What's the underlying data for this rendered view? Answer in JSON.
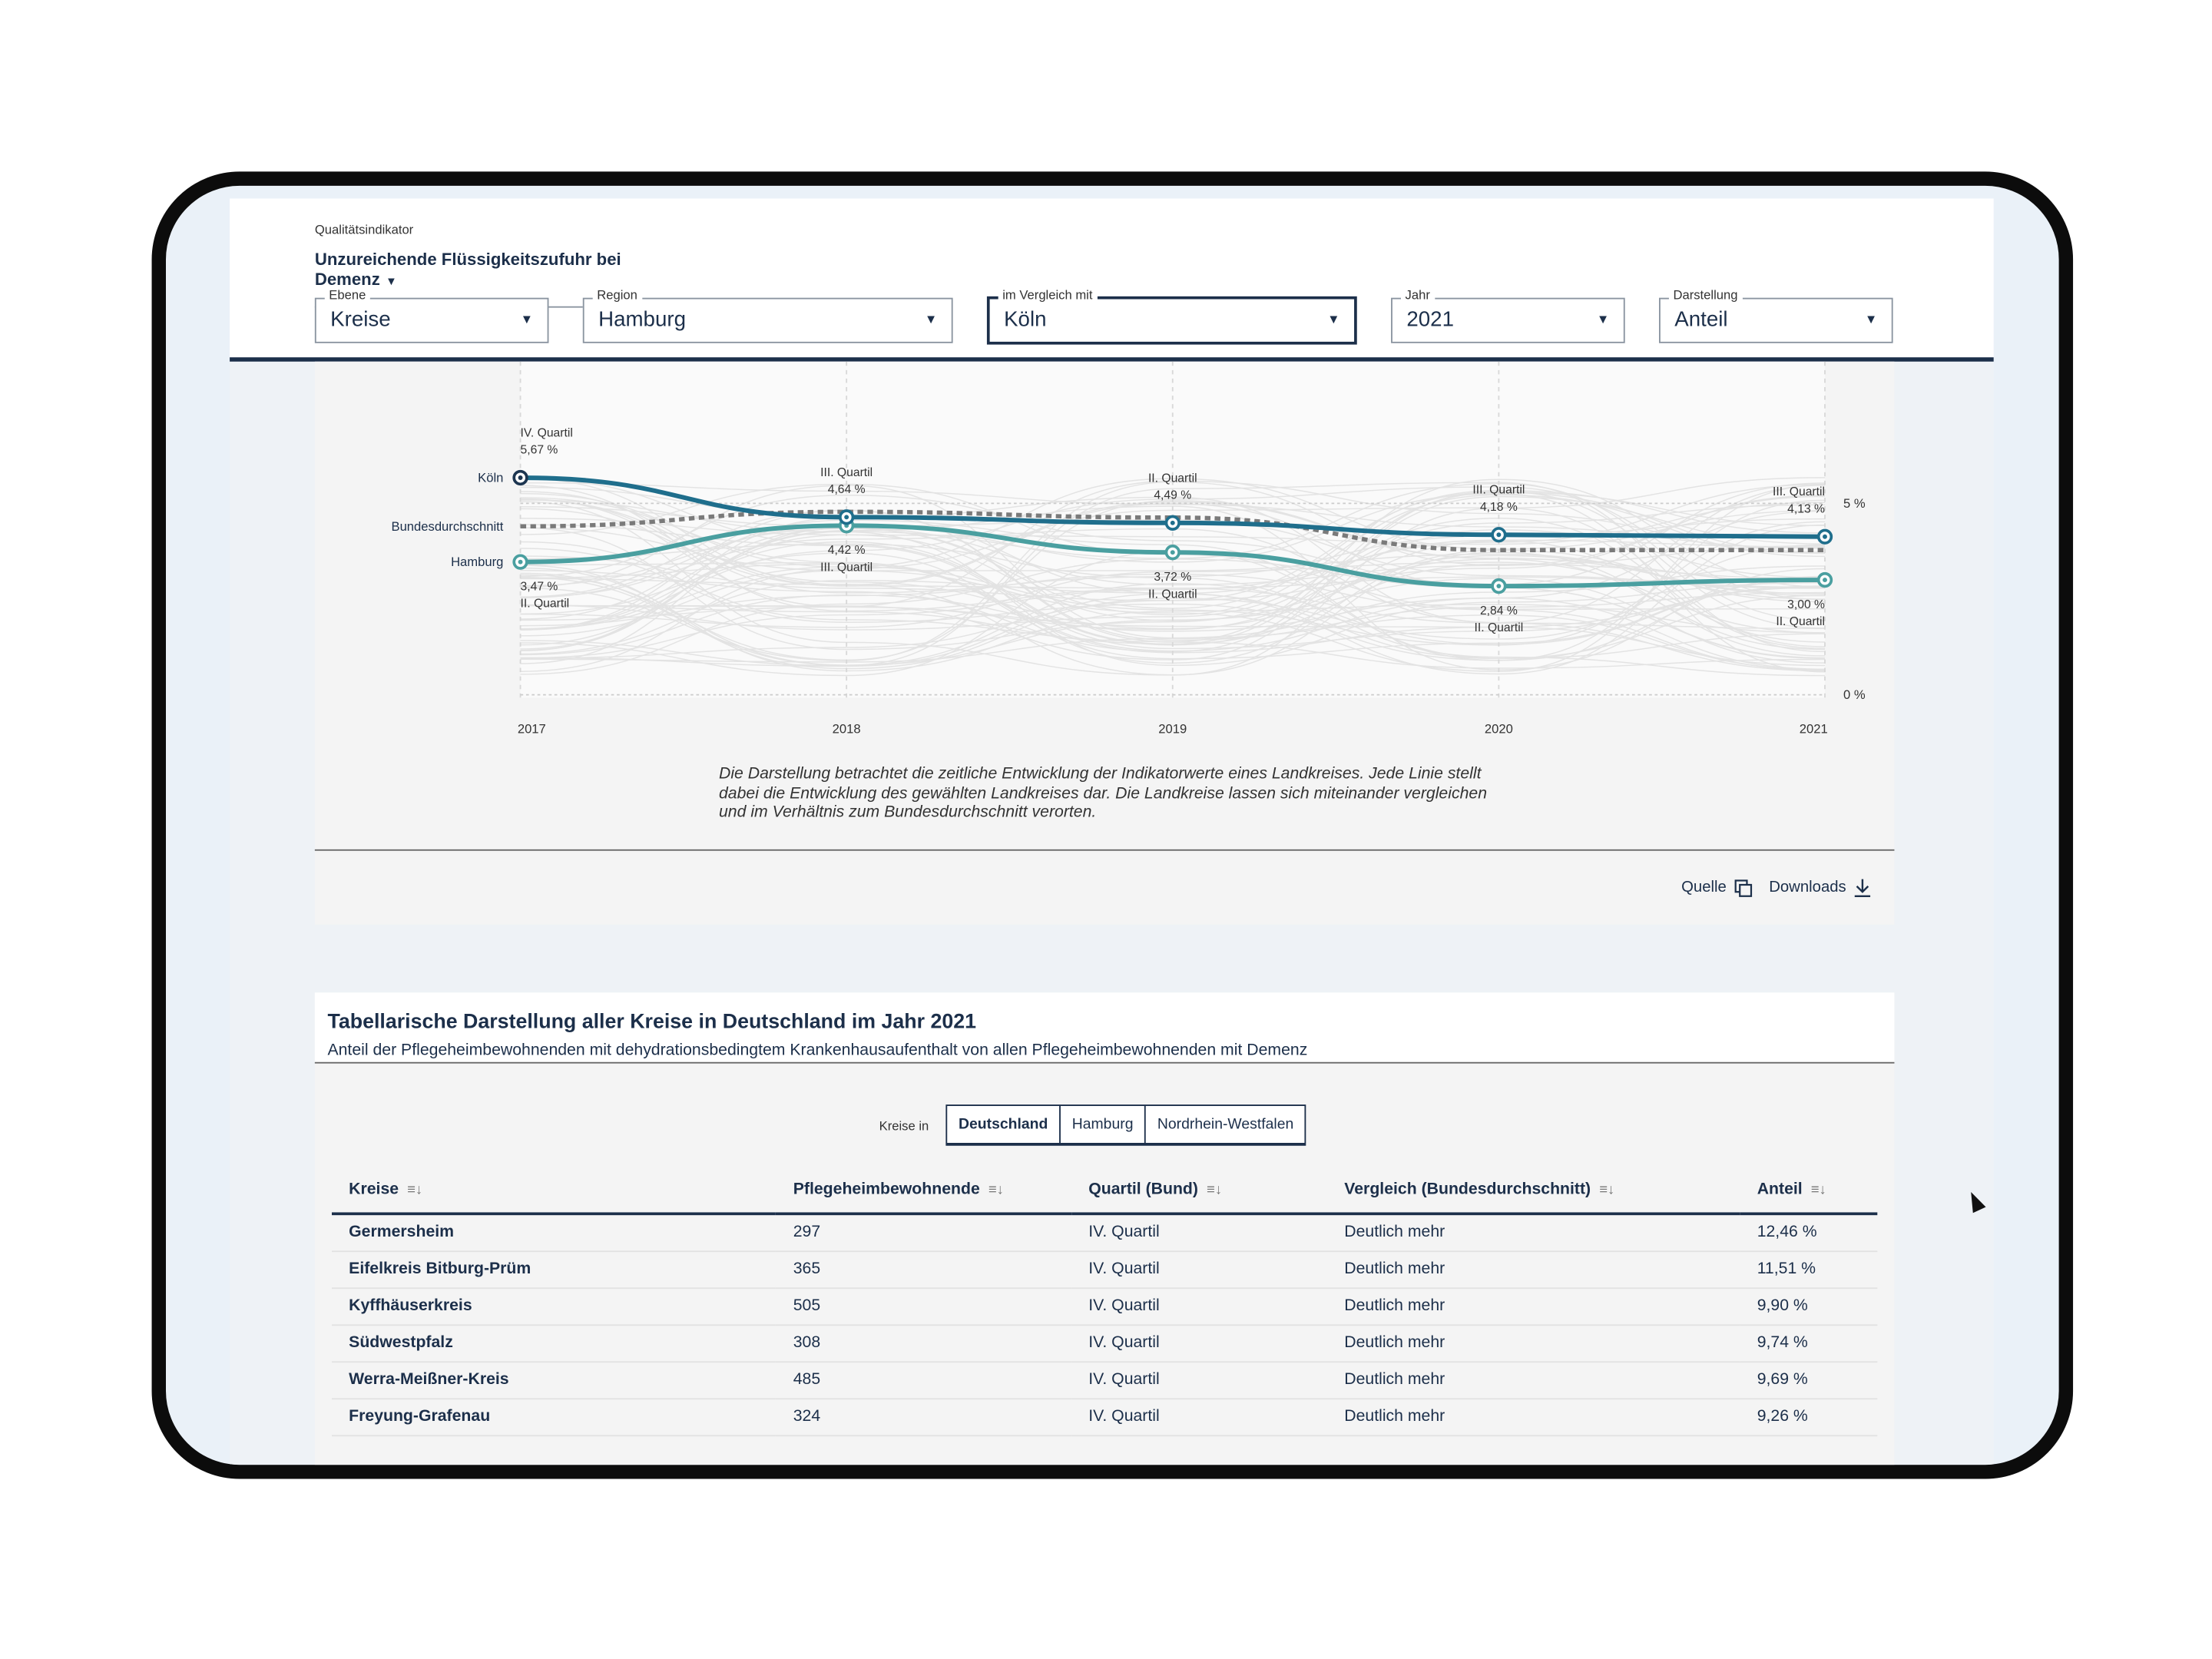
{
  "header": {
    "indicator_label": "Qualitätsindikator",
    "indicator_value": "Unzureichende Flüssigkeitszufuhr bei Demenz",
    "fields": [
      {
        "label": "Ebene",
        "value": "Kreise"
      },
      {
        "label": "Region",
        "value": "Hamburg"
      },
      {
        "label": "im Vergleich mit",
        "value": "Köln"
      },
      {
        "label": "Jahr",
        "value": "2021"
      },
      {
        "label": "Darstellung",
        "value": "Anteil"
      }
    ]
  },
  "chart_data": {
    "type": "line",
    "x": [
      "2017",
      "2018",
      "2019",
      "2020",
      "2021"
    ],
    "ylim": [
      0,
      5.9
    ],
    "yticks": [
      "0 %",
      "5 %"
    ],
    "ytick_values": [
      0,
      5
    ],
    "series": [
      {
        "name": "Köln",
        "color": "#1f6e8c",
        "values": [
          5.67,
          4.64,
          4.49,
          4.18,
          4.13
        ],
        "labels": [
          "5,67 %",
          "4,64 %",
          "4,49 %",
          "4,18 %",
          "4,13 %"
        ],
        "quartiles": [
          "IV. Quartil",
          "III. Quartil",
          "II. Quartil",
          "III. Quartil",
          "III. Quartil"
        ]
      },
      {
        "name": "Bundesdurchschnitt",
        "color": "#7a7a7a",
        "dashed": true,
        "values": [
          4.4,
          4.78,
          4.63,
          3.78,
          3.78
        ]
      },
      {
        "name": "Hamburg",
        "color": "#4a9fa0",
        "values": [
          3.47,
          4.42,
          3.72,
          2.84,
          3.0
        ],
        "labels": [
          "3,47 %",
          "4,42 %",
          "3,72 %",
          "2,84 %",
          "3,00 %"
        ],
        "quartiles": [
          "II. Quartil",
          "III. Quartil",
          "II. Quartil",
          "II. Quartil",
          "II. Quartil"
        ]
      }
    ]
  },
  "chart_caption": "Die Darstellung betrachtet die zeitliche Entwicklung der Indikatorwerte eines Landkreises. Jede Linie stellt dabei die Entwicklung des gewählten Landkreises dar. Die Landkreise lassen sich miteinander vergleichen und im Verhältnis zum Bundesdurchschnitt verorten.",
  "actions": {
    "source": "Quelle",
    "source_icon": "copy-icon",
    "downloads": "Downloads",
    "downloads_icon": "download-icon"
  },
  "table": {
    "title": "Tabellarische Darstellung aller Kreise in Deutschland im Jahr 2021",
    "subtitle": "Anteil der Pflegeheimbewohnenden mit dehydrationsbedingtem Krankenhausaufenthalt von allen Pflegeheimbewohnenden mit Demenz",
    "filter_label": "Kreise in",
    "filter_options": [
      "Deutschland",
      "Hamburg",
      "Nordrhein-Westfalen"
    ],
    "filter_selected": "Deutschland",
    "columns": [
      "Kreise",
      "Pflegeheimbewohnende",
      "Quartil (Bund)",
      "Vergleich (Bundesdurchschnitt)",
      "Anteil"
    ],
    "rows": [
      [
        "Germersheim",
        "297",
        "IV. Quartil",
        "Deutlich mehr",
        "12,46 %"
      ],
      [
        "Eifelkreis Bitburg-Prüm",
        "365",
        "IV. Quartil",
        "Deutlich mehr",
        "11,51 %"
      ],
      [
        "Kyffhäuserkreis",
        "505",
        "IV. Quartil",
        "Deutlich mehr",
        "9,90 %"
      ],
      [
        "Südwestpfalz",
        "308",
        "IV. Quartil",
        "Deutlich mehr",
        "9,74 %"
      ],
      [
        "Werra-Meißner-Kreis",
        "485",
        "IV. Quartil",
        "Deutlich mehr",
        "9,69 %"
      ],
      [
        "Freyung-Grafenau",
        "324",
        "IV. Quartil",
        "Deutlich mehr",
        "9,26 %"
      ]
    ]
  },
  "colors": {
    "primary": "#1c2f4a",
    "teal": "#4a9fa0",
    "blue": "#1f6e8c"
  }
}
